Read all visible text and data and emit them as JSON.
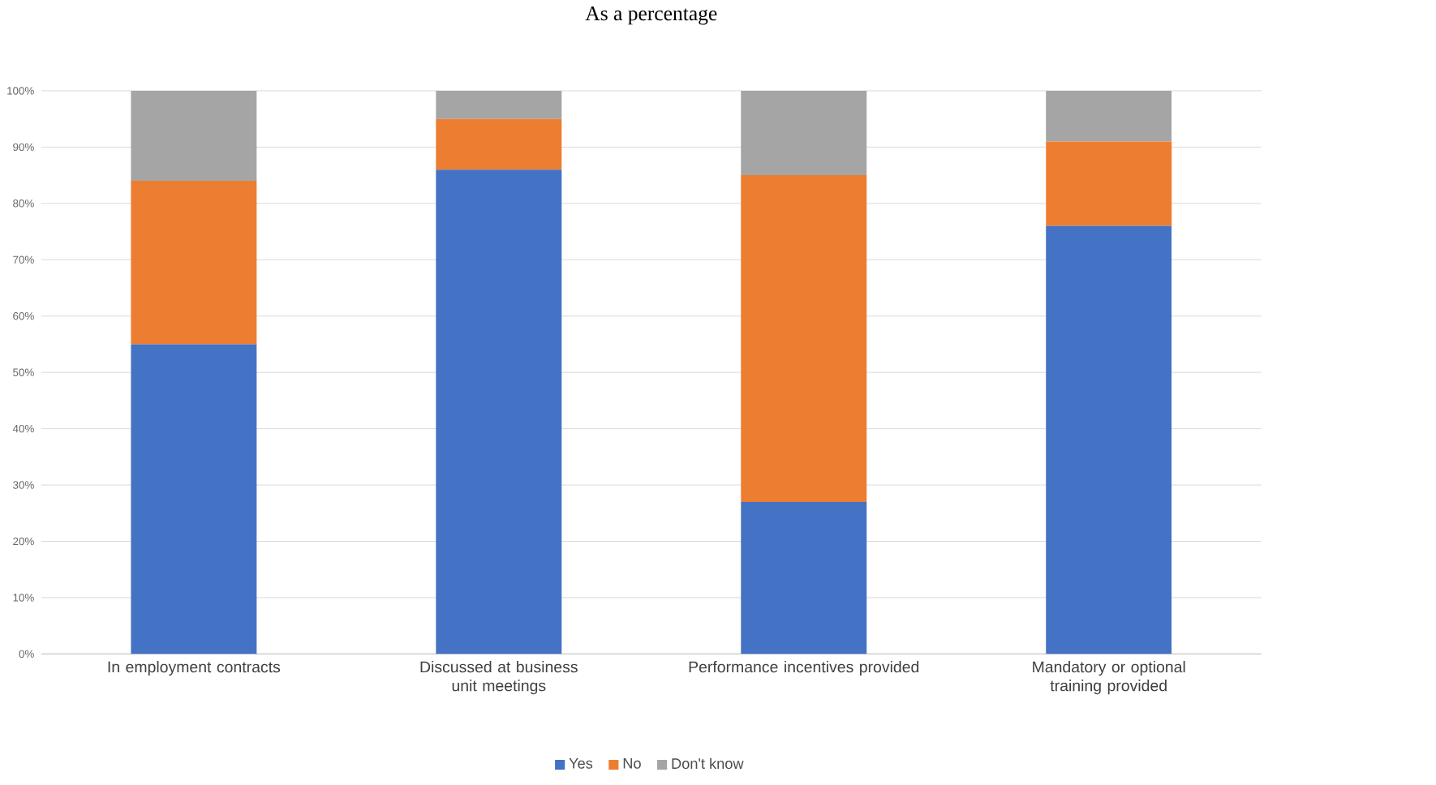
{
  "chart_data": {
    "type": "bar",
    "title": "As a percentage",
    "stacked": true,
    "categories": [
      "In employment contracts",
      "Discussed at business unit meetings",
      "Performance incentives provided",
      "Mandatory or optional training provided"
    ],
    "series": [
      {
        "name": "Yes",
        "color": "#4472c4",
        "values": [
          55,
          86,
          27,
          76
        ]
      },
      {
        "name": "No",
        "color": "#ed7d31",
        "values": [
          29,
          9,
          58,
          15
        ]
      },
      {
        "name": "Don't know",
        "color": "#a5a5a5",
        "values": [
          16,
          5,
          15,
          9
        ]
      }
    ],
    "ylim": [
      0,
      100
    ],
    "yticks": [
      {
        "value": 0,
        "label": "0%"
      },
      {
        "value": 10,
        "label": "10%"
      },
      {
        "value": 20,
        "label": "20%"
      },
      {
        "value": 30,
        "label": "30%"
      },
      {
        "value": 40,
        "label": "40%"
      },
      {
        "value": 50,
        "label": "50%"
      },
      {
        "value": 60,
        "label": "60%"
      },
      {
        "value": 70,
        "label": "70%"
      },
      {
        "value": 80,
        "label": "80%"
      },
      {
        "value": 90,
        "label": "90%"
      },
      {
        "value": 100,
        "label": "100%"
      }
    ],
    "grid": "y",
    "legend": "bottom"
  }
}
